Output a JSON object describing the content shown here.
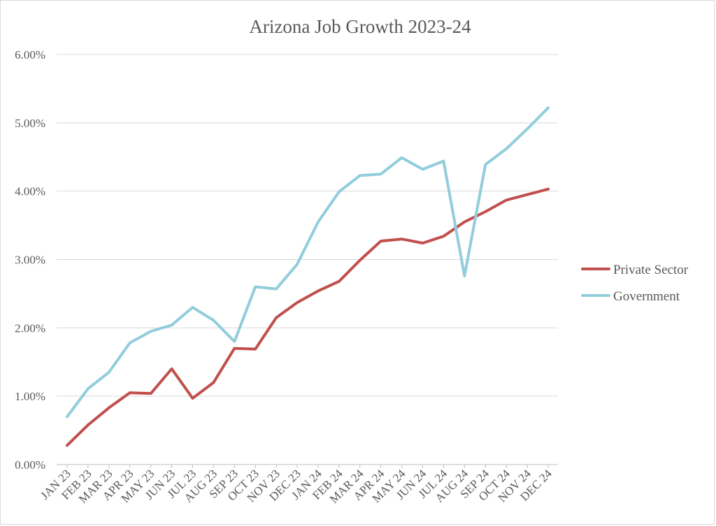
{
  "chart_data": {
    "type": "line",
    "title": "Arizona Job Growth 2023-24",
    "xlabel": "",
    "ylabel": "",
    "ylim": [
      0,
      6
    ],
    "yticks": [
      "0.00%",
      "1.00%",
      "2.00%",
      "3.00%",
      "4.00%",
      "5.00%",
      "6.00%"
    ],
    "grid": true,
    "legend_position": "right",
    "categories": [
      "JAN 23",
      "FEB 23",
      "MAR 23",
      "APR 23",
      "MAY 23",
      "JUN 23",
      "JUL 23",
      "AUG 23",
      "SEP 23",
      "OCT 23",
      "NOV 23",
      "DEC 23",
      "JAN 24",
      "FEB 24",
      "MAR 24",
      "APR 24",
      "MAY 24",
      "JUN 24",
      "JUL 24",
      "AUG 24",
      "SEP 24",
      "OCT 24",
      "NOV 24",
      "DEC 24"
    ],
    "series": [
      {
        "name": "Private Sector",
        "color": "#c0504d",
        "values": [
          0.28,
          0.58,
          0.83,
          1.05,
          1.04,
          1.4,
          0.97,
          1.2,
          1.7,
          1.69,
          2.15,
          2.37,
          2.54,
          2.68,
          2.99,
          3.27,
          3.3,
          3.24,
          3.34,
          3.55,
          3.7,
          3.87,
          3.95,
          4.03
        ]
      },
      {
        "name": "Government",
        "color": "#92cddc",
        "values": [
          0.7,
          1.11,
          1.35,
          1.78,
          1.95,
          2.04,
          2.3,
          2.11,
          1.8,
          2.6,
          2.57,
          2.93,
          3.55,
          3.99,
          4.23,
          4.25,
          4.49,
          4.32,
          4.44,
          2.76,
          4.39,
          4.62,
          4.91,
          5.22
        ]
      }
    ]
  }
}
